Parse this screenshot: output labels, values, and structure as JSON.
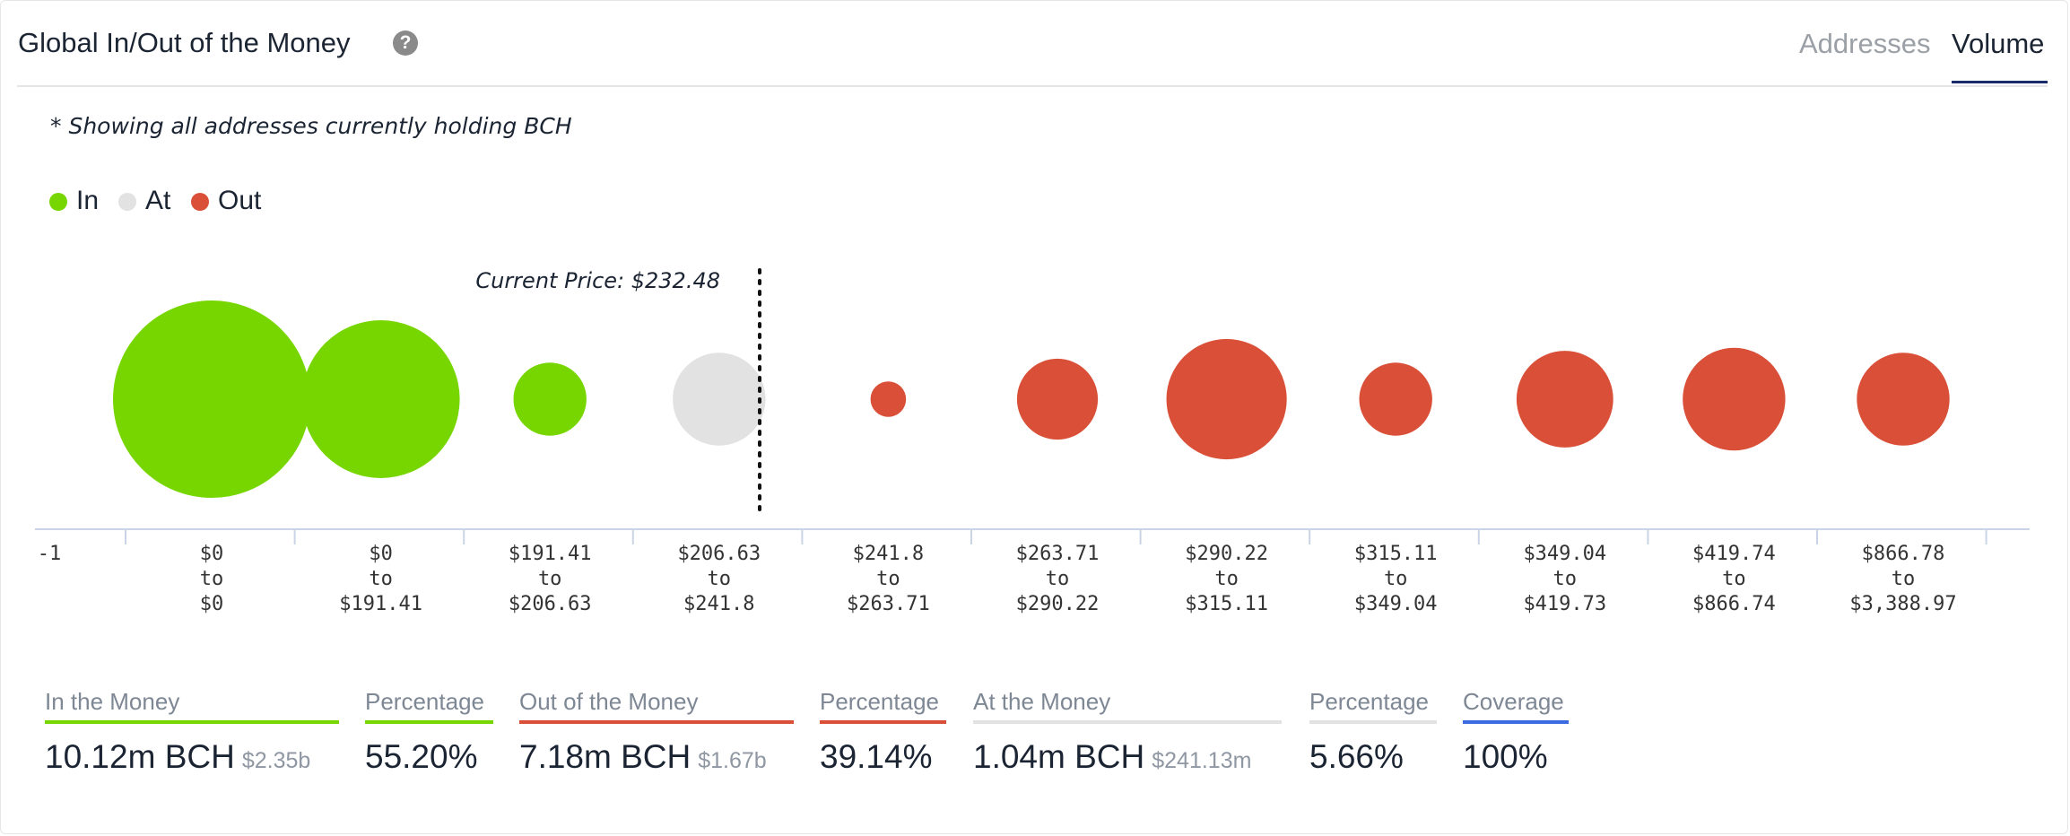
{
  "header": {
    "title": "Global In/Out of the Money",
    "help_icon": "question-circle-icon",
    "tabs": [
      {
        "label": "Addresses",
        "active": false
      },
      {
        "label": "Volume",
        "active": true
      }
    ]
  },
  "note": "* Showing all addresses currently holding BCH",
  "colors": {
    "in": "#77d600",
    "at": "#e2e2e2",
    "out": "#d94f38",
    "coverage": "#3a6be0",
    "axis": "#c9d5e6",
    "text": "#1b2433"
  },
  "chart_data": {
    "type": "bubble",
    "legend": [
      {
        "name": "In",
        "color": "#77d600"
      },
      {
        "name": "At",
        "color": "#e2e2e2"
      },
      {
        "name": "Out",
        "color": "#d94f38"
      }
    ],
    "current_price_label": "Current Price: $232.48",
    "x_start_tick": "-1",
    "series": [
      {
        "range": [
          "$0",
          "to",
          "$0"
        ],
        "status": "in",
        "relative_size": 1.0
      },
      {
        "range": [
          "$0",
          "to",
          "$191.41"
        ],
        "status": "in",
        "relative_size": 0.8
      },
      {
        "range": [
          "$191.41",
          "to",
          "$206.63"
        ],
        "status": "in",
        "relative_size": 0.37
      },
      {
        "range": [
          "$206.63",
          "to",
          "$241.8"
        ],
        "status": "at",
        "relative_size": 0.47
      },
      {
        "range": [
          "$241.8",
          "to",
          "$263.71"
        ],
        "status": "out",
        "relative_size": 0.18
      },
      {
        "range": [
          "$263.71",
          "to",
          "$290.22"
        ],
        "status": "out",
        "relative_size": 0.41
      },
      {
        "range": [
          "$290.22",
          "to",
          "$315.11"
        ],
        "status": "out",
        "relative_size": 0.61
      },
      {
        "range": [
          "$315.11",
          "to",
          "$349.04"
        ],
        "status": "out",
        "relative_size": 0.37
      },
      {
        "range": [
          "$349.04",
          "to",
          "$419.73"
        ],
        "status": "out",
        "relative_size": 0.49
      },
      {
        "range": [
          "$419.74",
          "to",
          "$866.74"
        ],
        "status": "out",
        "relative_size": 0.52
      },
      {
        "range": [
          "$866.78",
          "to",
          "$3,388.97"
        ],
        "status": "out",
        "relative_size": 0.47
      }
    ]
  },
  "summary": [
    {
      "label": "In the Money",
      "value": "10.12m BCH",
      "sub": "$2.35b",
      "color": "#77d600"
    },
    {
      "label": "Percentage",
      "value": "55.20%",
      "sub": "",
      "color": "#77d600"
    },
    {
      "label": "Out of the Money",
      "value": "7.18m BCH",
      "sub": "$1.67b",
      "color": "#d94f38"
    },
    {
      "label": "Percentage",
      "value": "39.14%",
      "sub": "",
      "color": "#d94f38"
    },
    {
      "label": "At the Money",
      "value": "1.04m BCH",
      "sub": "$241.13m",
      "color": "#e2e2e2"
    },
    {
      "label": "Percentage",
      "value": "5.66%",
      "sub": "",
      "color": "#e2e2e2"
    },
    {
      "label": "Coverage",
      "value": "100%",
      "sub": "",
      "color": "#3a6be0"
    }
  ]
}
